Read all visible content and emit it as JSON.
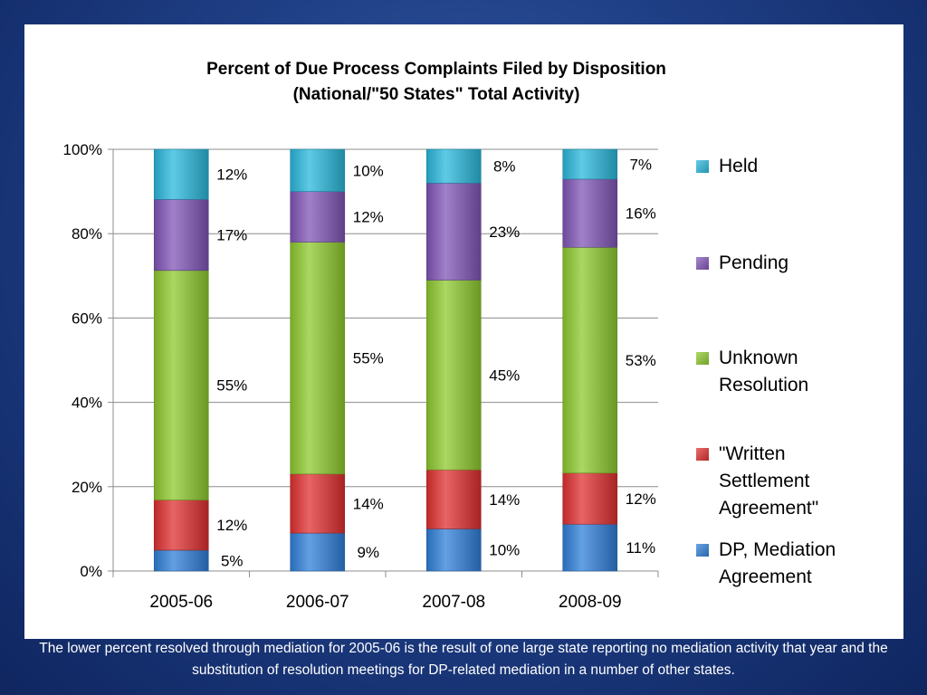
{
  "title_line1": "Percent of Due Process Complaints Filed by Disposition",
  "title_line2": "(National/\"50 States\" Total Activity)",
  "caption": "The lower percent resolved through mediation for 2005-06 is the result of one large state reporting no mediation activity that year and the substitution of resolution meetings for DP-related mediation in a number of other states.",
  "chart_data": {
    "type": "bar",
    "stacked": true,
    "percent": true,
    "categories": [
      "2005-06",
      "2006-07",
      "2007-08",
      "2008-09"
    ],
    "ylim": [
      0,
      100
    ],
    "yticks": [
      "0%",
      "20%",
      "40%",
      "60%",
      "80%",
      "100%"
    ],
    "legend_position": "right",
    "grid": true,
    "series": [
      {
        "name": "DP, Mediation Agreement",
        "values": [
          5,
          9,
          10,
          11
        ],
        "labels": [
          "5%",
          "9%",
          "10%",
          "11%"
        ],
        "color": "#2f7fd8"
      },
      {
        "name": "\"Written Settlement Agreement\"",
        "values": [
          12,
          14,
          14,
          12
        ],
        "labels": [
          "12%",
          "14%",
          "14%",
          "12%"
        ],
        "color": "#e03030"
      },
      {
        "name": "Unknown Resolution",
        "values": [
          55,
          55,
          45,
          53
        ],
        "labels": [
          "55%",
          "55%",
          "45%",
          "53%"
        ],
        "color": "#8ec92e"
      },
      {
        "name": "Pending",
        "values": [
          17,
          12,
          23,
          16
        ],
        "labels": [
          "17%",
          "12%",
          "23%",
          "16%"
        ],
        "color": "#8155b8"
      },
      {
        "name": "Held",
        "values": [
          12,
          10,
          8,
          7
        ],
        "labels": [
          "12%",
          "10%",
          "8%",
          "7%"
        ],
        "color": "#2ab8dc"
      }
    ],
    "legend_items": [
      {
        "text": "Held",
        "color": "#2ab8dc"
      },
      {
        "text": "Pending",
        "color": "#8155b8"
      },
      {
        "text": "Unknown\nResolution",
        "color": "#8ec92e"
      },
      {
        "text": "\"Written\nSettlement\nAgreement\"",
        "color": "#e03030"
      },
      {
        "text": "DP, Mediation\nAgreement",
        "color": "#2f7fd8"
      }
    ]
  }
}
